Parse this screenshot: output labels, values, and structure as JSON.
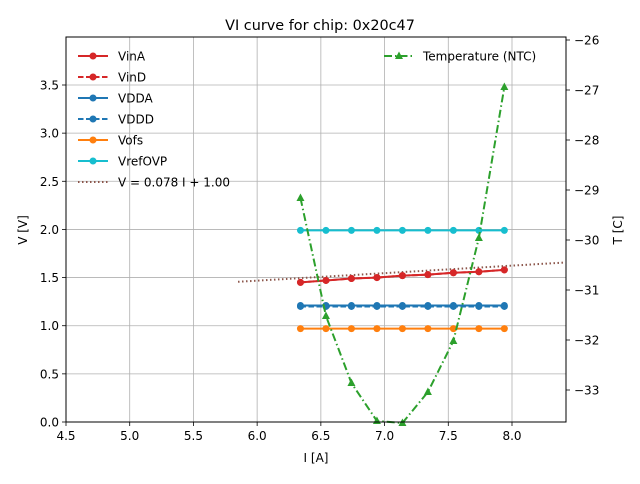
{
  "chart_data": {
    "type": "line",
    "title": "VI curve for chip: 0x20c47",
    "xlabel": "I [A]",
    "ylabel": "V [V]",
    "y2label": "T [C]",
    "xlim": [
      4.5,
      8.4
    ],
    "ylim": [
      0.0,
      4.0
    ],
    "y2lim": [
      -33.66,
      -25.96
    ],
    "xticks": [
      "4.5",
      "5.0",
      "5.5",
      "6.0",
      "6.5",
      "7.0",
      "7.5",
      "8.0"
    ],
    "yticks": [
      "0.0",
      "0.5",
      "1.0",
      "1.5",
      "2.0",
      "2.5",
      "3.0",
      "3.5"
    ],
    "y2ticks": [
      "−26",
      "−27",
      "−28",
      "−29",
      "−30",
      "−31",
      "−32",
      "−33"
    ],
    "grid": true,
    "legend_left_position": "upper-left",
    "legend_right_position": "upper-right",
    "x": [
      6.34,
      6.54,
      6.74,
      6.94,
      7.14,
      7.34,
      7.54,
      7.74,
      7.94
    ],
    "series": [
      {
        "name": "VinA",
        "color": "#d62728",
        "style": "solid",
        "marker": "circle",
        "axis": "left",
        "values": [
          1.45,
          1.47,
          1.49,
          1.5,
          1.52,
          1.53,
          1.55,
          1.56,
          1.58
        ]
      },
      {
        "name": "VinD",
        "color": "#d62728",
        "style": "dashed",
        "marker": "circle",
        "axis": "left",
        "values": [
          1.45,
          1.47,
          1.49,
          1.5,
          1.52,
          1.53,
          1.55,
          1.56,
          1.58
        ]
      },
      {
        "name": "VDDA",
        "color": "#1f77b4",
        "style": "solid",
        "marker": "circle",
        "axis": "left",
        "values": [
          1.21,
          1.21,
          1.21,
          1.21,
          1.21,
          1.21,
          1.21,
          1.21,
          1.21
        ]
      },
      {
        "name": "VDDD",
        "color": "#1f77b4",
        "style": "dashed",
        "marker": "circle",
        "axis": "left",
        "values": [
          1.2,
          1.2,
          1.2,
          1.2,
          1.2,
          1.2,
          1.2,
          1.2,
          1.2
        ]
      },
      {
        "name": "Vofs",
        "color": "#ff7f0e",
        "style": "solid",
        "marker": "circle",
        "axis": "left",
        "values": [
          0.97,
          0.97,
          0.97,
          0.97,
          0.97,
          0.97,
          0.97,
          0.97,
          0.97
        ]
      },
      {
        "name": "VrefOVP",
        "color": "#17becf",
        "style": "solid",
        "marker": "circle",
        "axis": "left",
        "values": [
          1.99,
          1.99,
          1.99,
          1.99,
          1.99,
          1.99,
          1.99,
          1.99,
          1.99
        ]
      },
      {
        "name": "Temperature (NTC)",
        "color": "#2ca02c",
        "style": "dashdot",
        "marker": "triangle",
        "axis": "right",
        "values": [
          -29.16,
          -31.52,
          -32.86,
          -33.62,
          -33.66,
          -33.04,
          -32.02,
          -29.96,
          -26.94
        ]
      }
    ],
    "fit": {
      "name": "V = 0.078 I + 1.00",
      "color": "#8c564b",
      "style": "dotted",
      "slope": 0.078,
      "intercept": 1.0,
      "x_range": [
        5.85,
        8.4
      ]
    }
  }
}
